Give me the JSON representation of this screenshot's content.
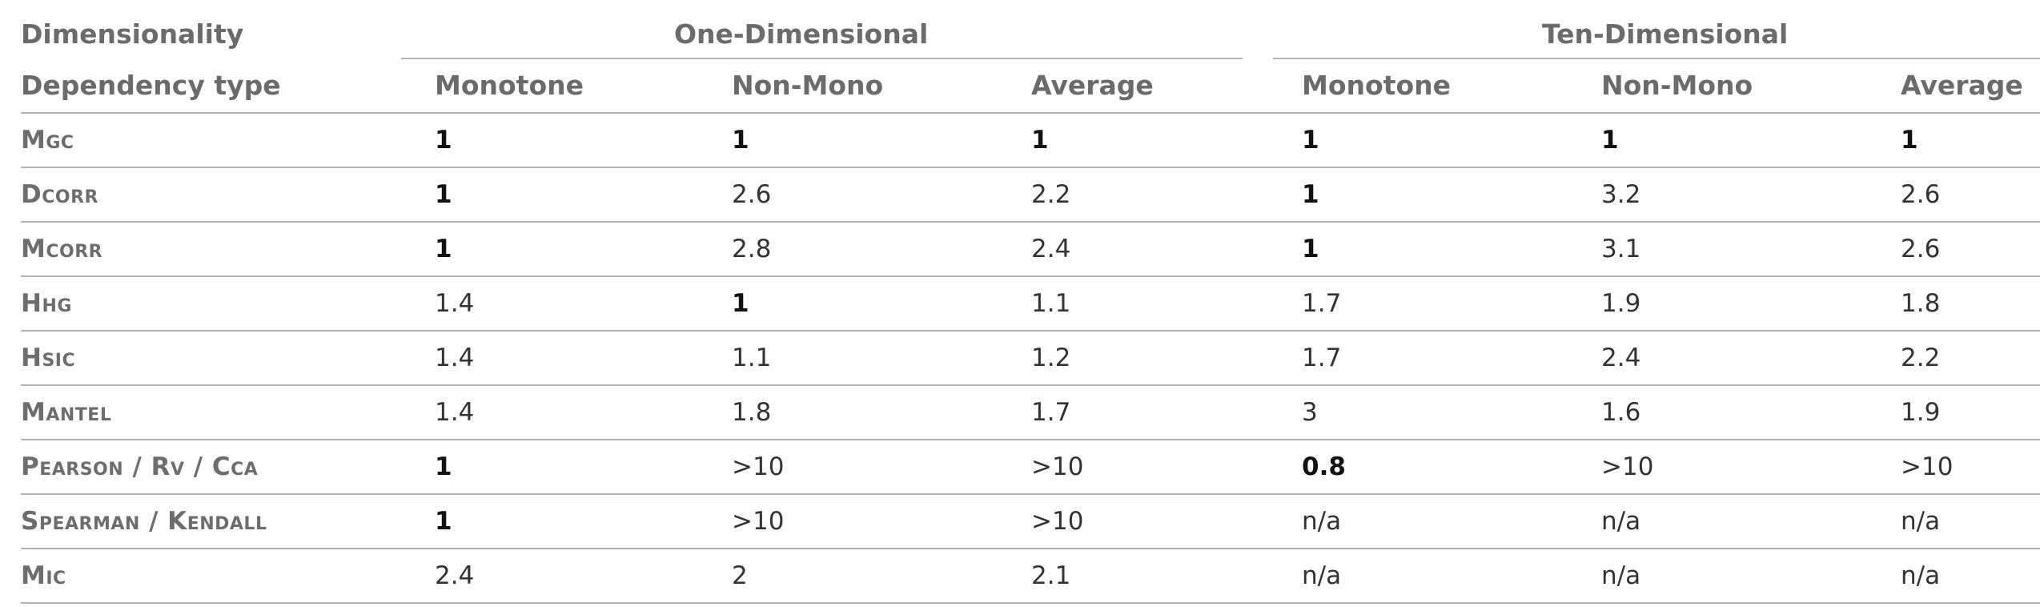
{
  "header": {
    "dimensionality_label": "Dimensionality",
    "group_one": "One-Dimensional",
    "group_ten": "Ten-Dimensional",
    "dependency_label": "Dependency type",
    "columns": [
      "Monotone",
      "Non-Mono",
      "Average",
      "Monotone",
      "Non-Mono",
      "Average"
    ]
  },
  "rows": [
    {
      "label": "Mgc",
      "values": [
        "1",
        "1",
        "1",
        "1",
        "1",
        "1"
      ],
      "bold": [
        true,
        true,
        true,
        true,
        true,
        true
      ]
    },
    {
      "label": "Dcorr",
      "values": [
        "1",
        "2.6",
        "2.2",
        "1",
        "3.2",
        "2.6"
      ],
      "bold": [
        true,
        false,
        false,
        true,
        false,
        false
      ]
    },
    {
      "label": "Mcorr",
      "values": [
        "1",
        "2.8",
        "2.4",
        "1",
        "3.1",
        "2.6"
      ],
      "bold": [
        true,
        false,
        false,
        true,
        false,
        false
      ]
    },
    {
      "label": "Hhg",
      "values": [
        "1.4",
        "1",
        "1.1",
        "1.7",
        "1.9",
        "1.8"
      ],
      "bold": [
        false,
        true,
        false,
        false,
        false,
        false
      ]
    },
    {
      "label": "Hsic",
      "values": [
        "1.4",
        "1.1",
        "1.2",
        "1.7",
        "2.4",
        "2.2"
      ],
      "bold": [
        false,
        false,
        false,
        false,
        false,
        false
      ]
    },
    {
      "label": "Mantel",
      "values": [
        "1.4",
        "1.8",
        "1.7",
        "3",
        "1.6",
        "1.9"
      ],
      "bold": [
        false,
        false,
        false,
        false,
        false,
        false
      ]
    },
    {
      "label": "Pearson / Rv / Cca",
      "values": [
        "1",
        ">10",
        ">10",
        "0.8",
        ">10",
        ">10"
      ],
      "bold": [
        true,
        false,
        false,
        true,
        false,
        false
      ]
    },
    {
      "label": "Spearman / Kendall",
      "values": [
        "1",
        ">10",
        ">10",
        "n/a",
        "n/a",
        "n/a"
      ],
      "bold": [
        true,
        false,
        false,
        false,
        false,
        false
      ]
    },
    {
      "label": "Mic",
      "values": [
        "2.4",
        "2",
        "2.1",
        "n/a",
        "n/a",
        "n/a"
      ],
      "bold": [
        false,
        false,
        false,
        false,
        false,
        false
      ]
    }
  ]
}
